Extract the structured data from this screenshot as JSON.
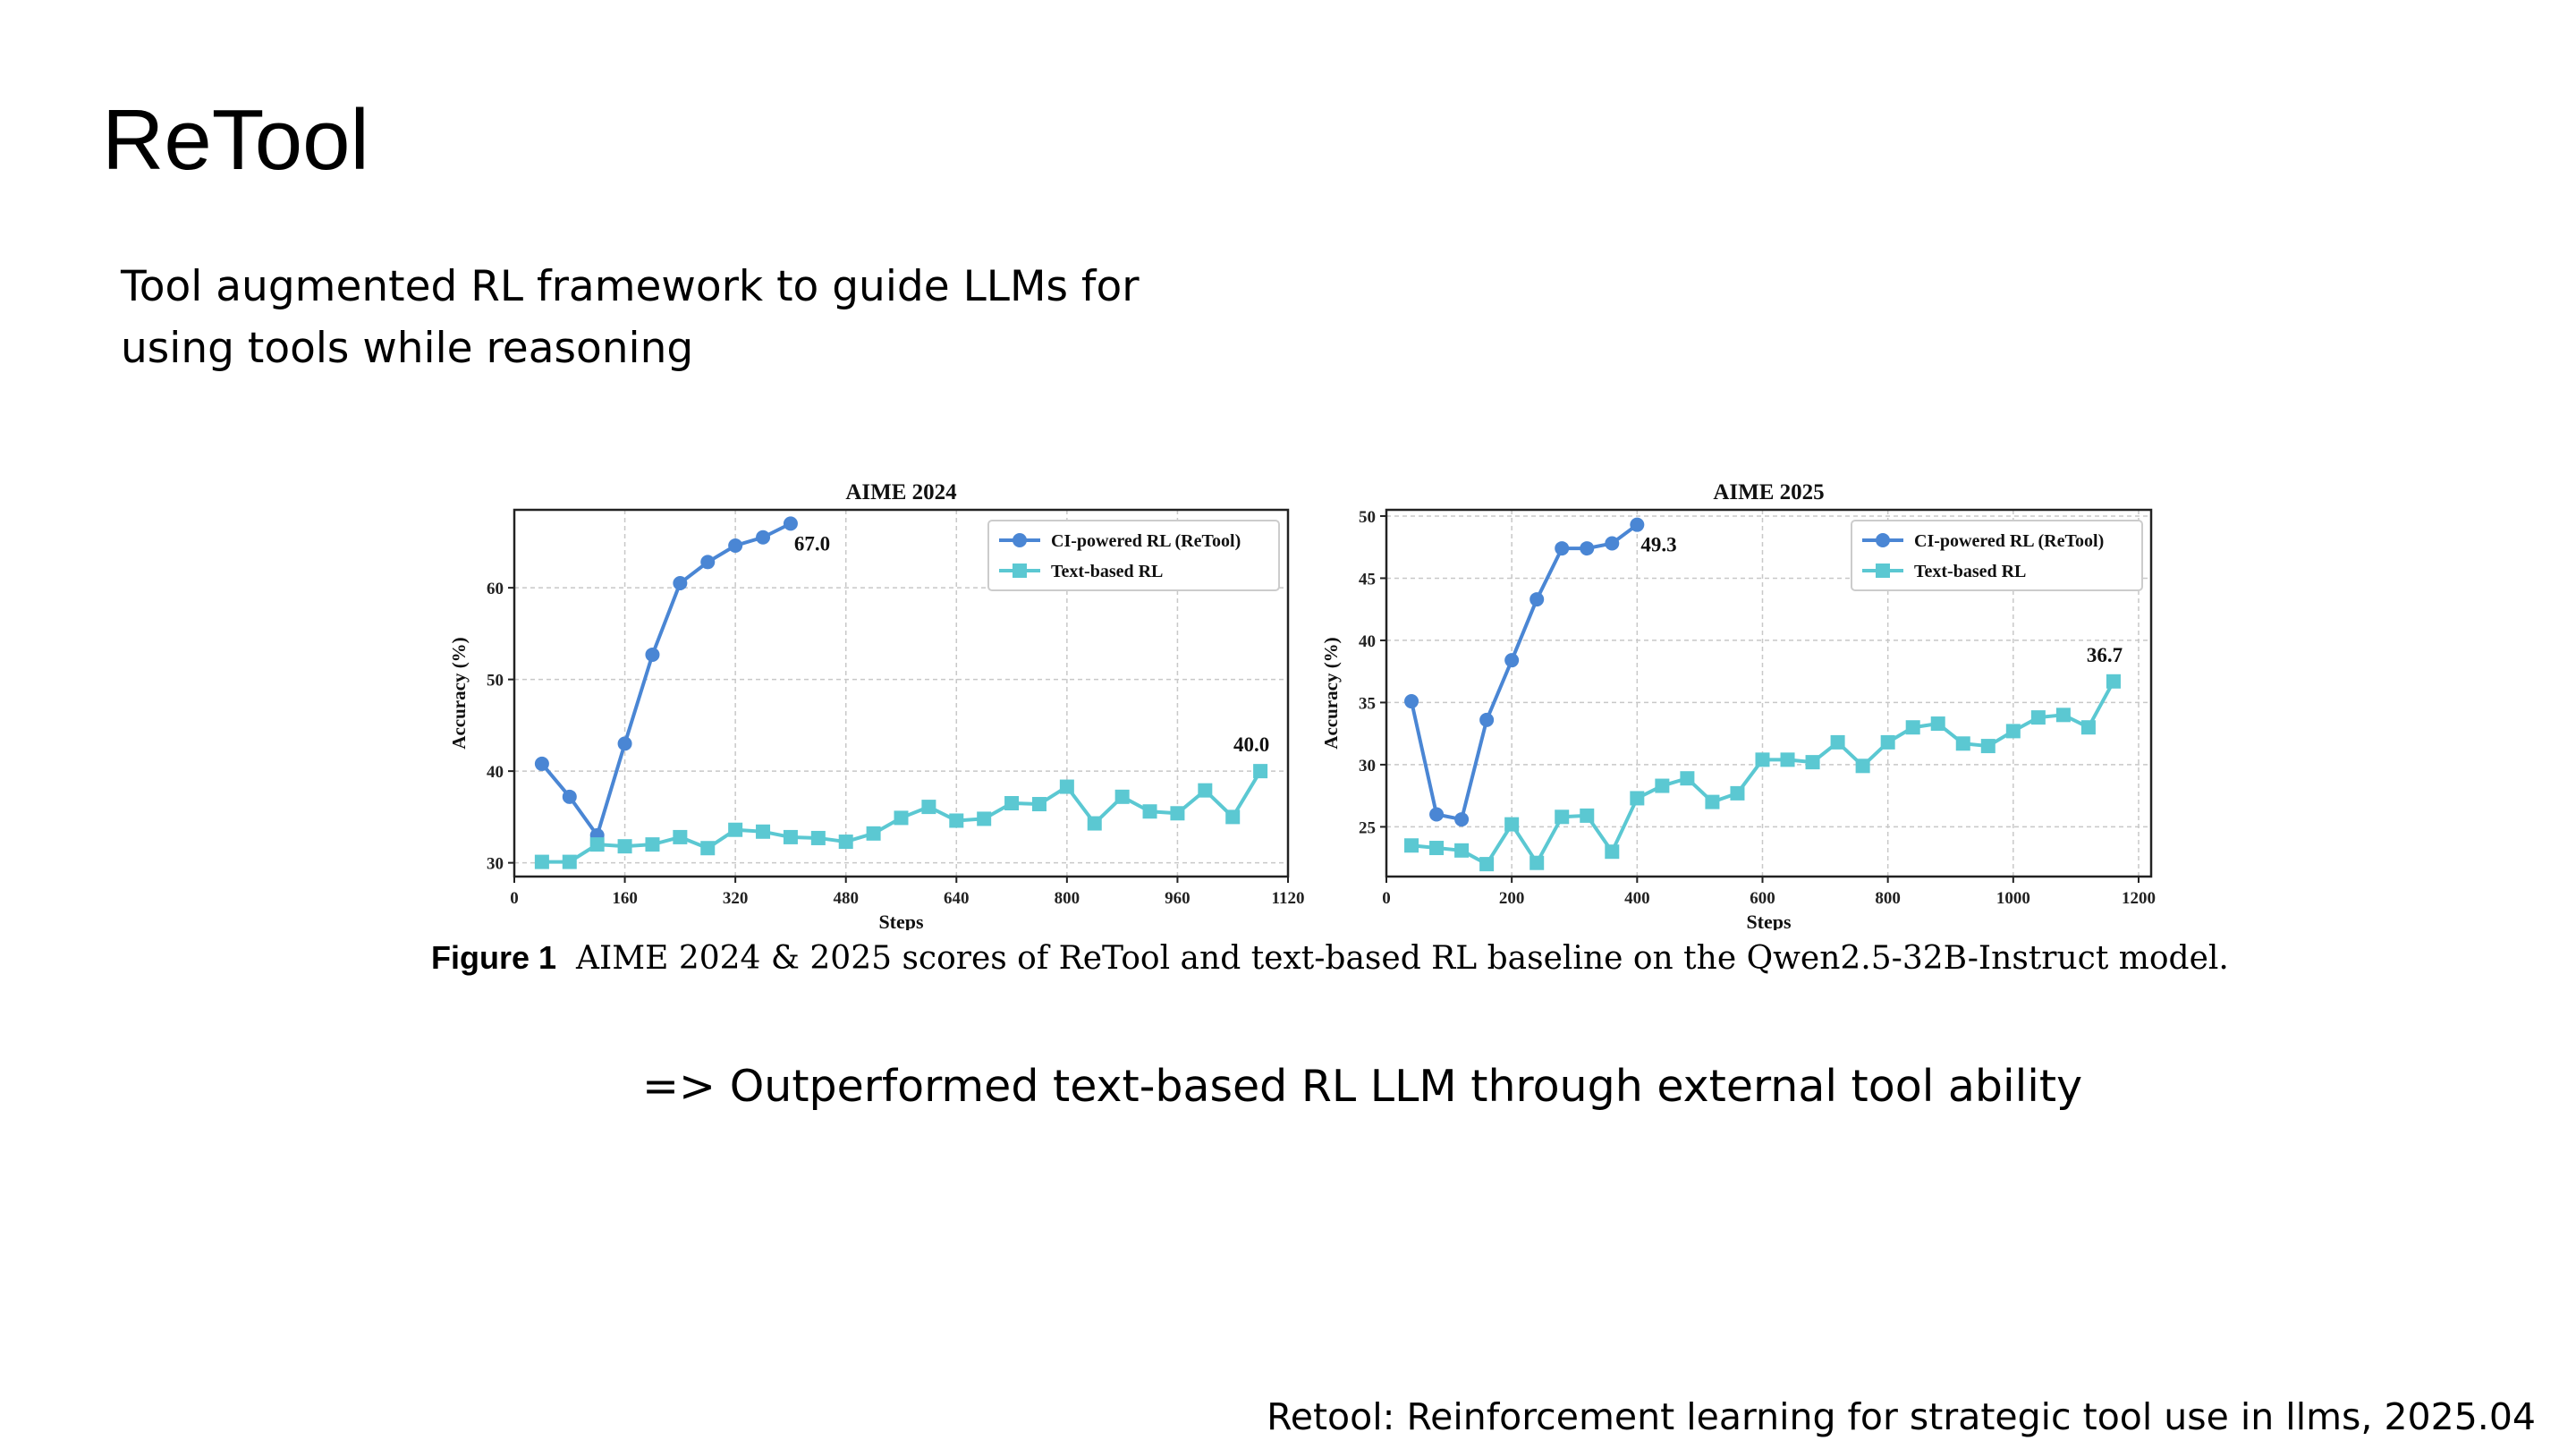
{
  "slide": {
    "title": "ReTool",
    "subtitle": "Tool augmented RL framework to guide LLMs for using tools while reasoning",
    "conclusion": "=> Outperformed text-based RL LLM through external tool ability",
    "citation": "Retool: Reinforcement learning for strategic tool use in llms, 2025.04"
  },
  "caption": {
    "label": "Figure 1",
    "text": "AIME 2024 & 2025 scores of ReTool and text-based RL baseline on the Qwen2.5-32B-Instruct model."
  },
  "chart_data": [
    {
      "type": "line",
      "title": "AIME 2024",
      "xlabel": "Steps",
      "ylabel": "Accuracy (%)",
      "xlim": [
        0,
        1120
      ],
      "ylim": [
        28.5,
        68.5
      ],
      "xticks": [
        0,
        160,
        320,
        480,
        640,
        800,
        960,
        1120
      ],
      "yticks": [
        30,
        40,
        50,
        60
      ],
      "grid": true,
      "legend_position": "top-right",
      "series": [
        {
          "name": "CI-powered RL (ReTool)",
          "color": "#4a86d4",
          "marker": "circle",
          "x": [
            40,
            80,
            120,
            160,
            200,
            240,
            280,
            320,
            360,
            400
          ],
          "y": [
            40.8,
            37.2,
            33.0,
            43.0,
            52.7,
            60.5,
            62.8,
            64.6,
            65.5,
            67.0
          ],
          "end_label": "67.0"
        },
        {
          "name": "Text-based RL",
          "color": "#5bc8d2",
          "marker": "square",
          "x": [
            40,
            80,
            120,
            160,
            200,
            240,
            280,
            320,
            360,
            400,
            440,
            480,
            520,
            560,
            600,
            640,
            680,
            720,
            760,
            800,
            840,
            880,
            920,
            960,
            1000,
            1040,
            1080
          ],
          "y": [
            30.1,
            30.1,
            32.0,
            31.8,
            32.0,
            32.8,
            31.6,
            33.6,
            33.4,
            32.8,
            32.7,
            32.3,
            33.2,
            34.9,
            36.1,
            34.6,
            34.8,
            36.5,
            36.4,
            38.3,
            34.3,
            37.2,
            35.6,
            35.4,
            37.9,
            35.0,
            40.0
          ],
          "end_label": "40.0"
        }
      ]
    },
    {
      "type": "line",
      "title": "AIME 2025",
      "xlabel": "Steps",
      "ylabel": "Accuracy (%)",
      "xlim": [
        0,
        1220
      ],
      "ylim": [
        21,
        50.5
      ],
      "xticks": [
        0,
        200,
        400,
        600,
        800,
        1000,
        1200
      ],
      "yticks": [
        25,
        30,
        35,
        40,
        45,
        50
      ],
      "grid": true,
      "legend_position": "top-right",
      "series": [
        {
          "name": "CI-powered RL (ReTool)",
          "color": "#4a86d4",
          "marker": "circle",
          "x": [
            40,
            80,
            120,
            160,
            200,
            240,
            280,
            320,
            360,
            400
          ],
          "y": [
            35.1,
            26.0,
            25.6,
            33.6,
            38.4,
            43.3,
            47.4,
            47.4,
            47.8,
            49.3
          ],
          "end_label": "49.3"
        },
        {
          "name": "Text-based RL",
          "color": "#5bc8d2",
          "marker": "square",
          "x": [
            40,
            80,
            120,
            160,
            200,
            240,
            280,
            320,
            360,
            400,
            440,
            480,
            520,
            560,
            600,
            640,
            680,
            720,
            760,
            800,
            840,
            880,
            920,
            960,
            1000,
            1040,
            1080,
            1120,
            1160
          ],
          "y": [
            23.5,
            23.3,
            23.1,
            22.0,
            25.2,
            22.1,
            25.8,
            25.9,
            23.0,
            27.3,
            28.3,
            28.9,
            27.0,
            27.7,
            30.4,
            30.4,
            30.2,
            31.8,
            29.9,
            31.8,
            33.0,
            33.3,
            31.7,
            31.5,
            32.7,
            33.8,
            34.0,
            33.0,
            36.7
          ],
          "end_label": "36.7"
        }
      ]
    }
  ]
}
